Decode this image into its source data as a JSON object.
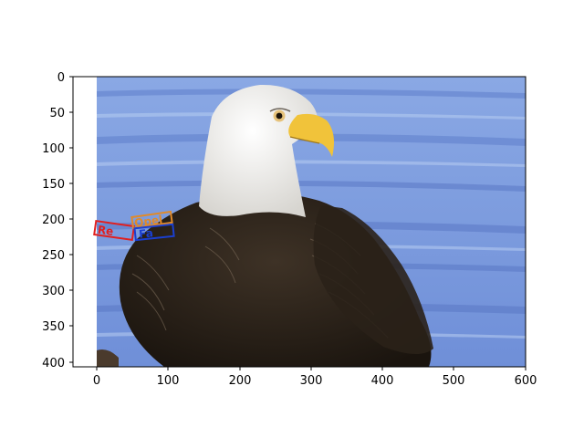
{
  "axes": {
    "x_ticks": [
      "0",
      "100",
      "200",
      "300",
      "400",
      "500",
      "600"
    ],
    "y_ticks": [
      "0",
      "50",
      "100",
      "150",
      "200",
      "250",
      "300",
      "350",
      "400"
    ]
  },
  "photo": {
    "subject": "bald-eagle",
    "background_color": "#7f9fdf"
  },
  "annotations": [
    {
      "label": "Re",
      "color": "#e02020"
    },
    {
      "label": "Opel",
      "color": "#e08a2a"
    },
    {
      "label": "Fa",
      "color": "#1a3fd0"
    }
  ]
}
